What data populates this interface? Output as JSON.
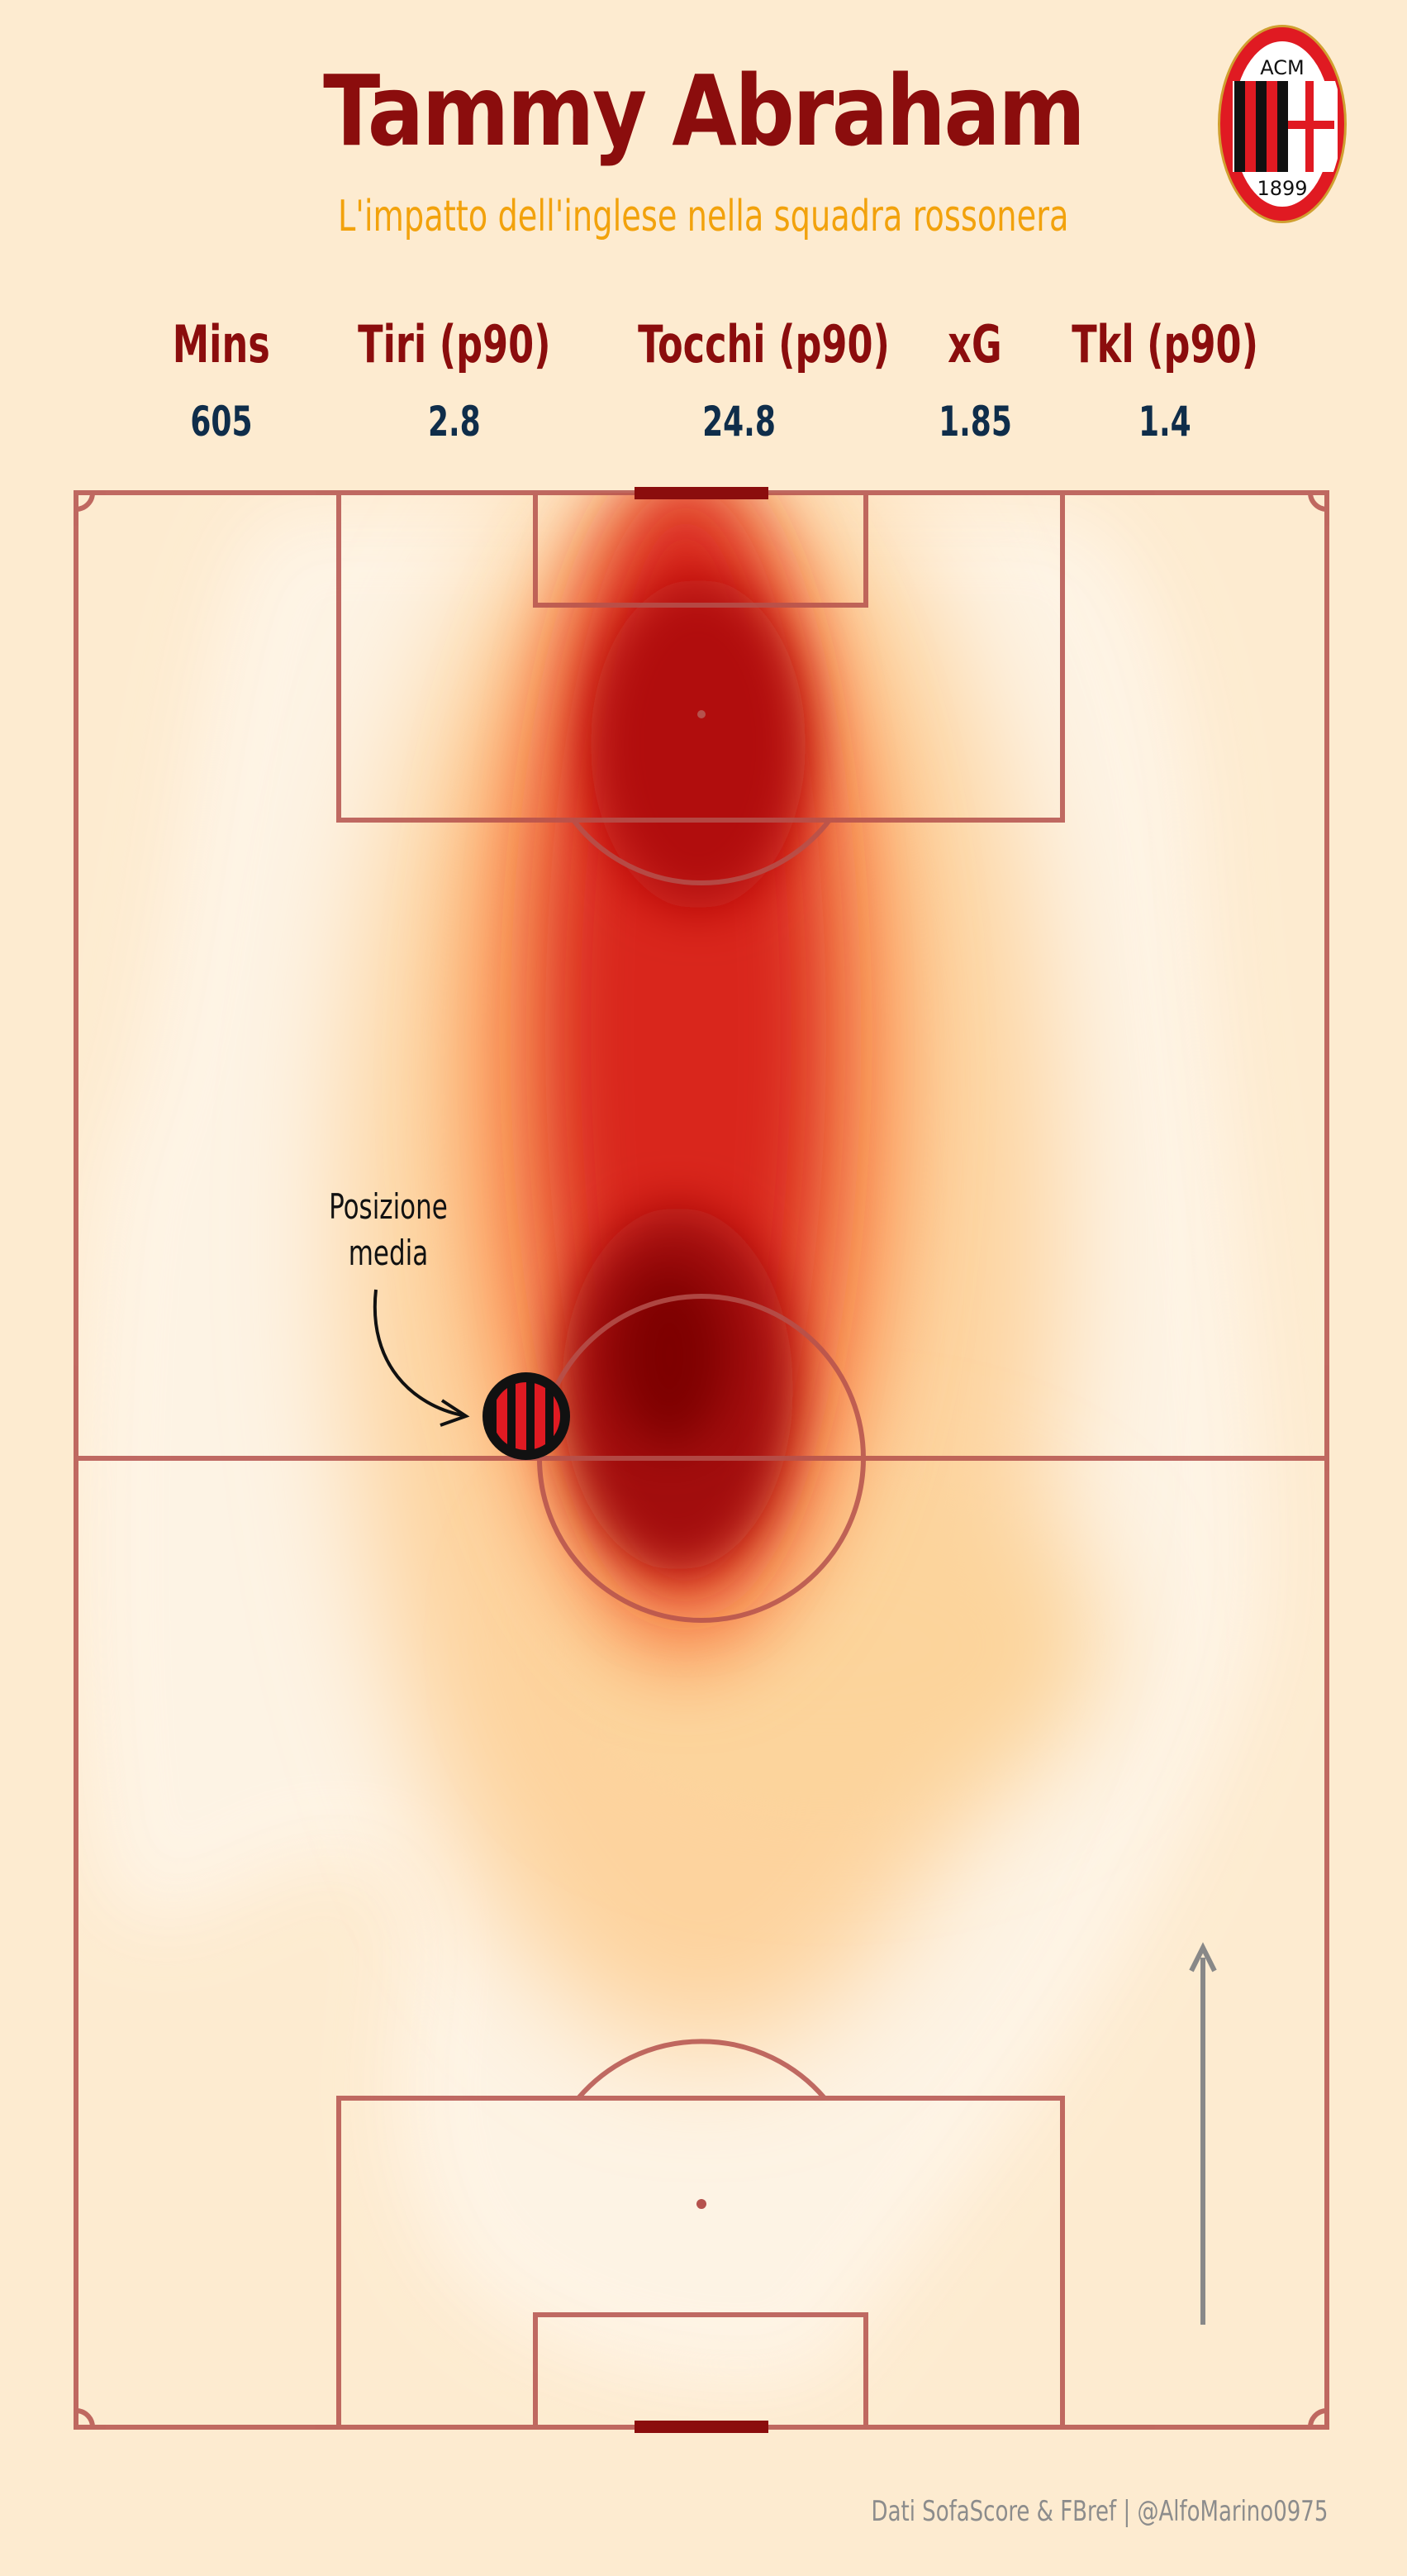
{
  "header": {
    "title": "Tammy Abraham",
    "subtitle": "L'impatto dell'inglese nella squadra rossonera"
  },
  "logo": {
    "text_top": "ACM",
    "text_bottom": "1899",
    "colors": {
      "red": "#e01a22",
      "black": "#111111",
      "gold": "#d4a52a"
    }
  },
  "stats": [
    {
      "label": "Mins",
      "value": "605"
    },
    {
      "label": "Tiri (p90)",
      "value": "2.8"
    },
    {
      "label": "Tocchi (p90)",
      "value": "24.8"
    },
    {
      "label": "xG",
      "value": "1.85"
    },
    {
      "label": "Tkl (p90)",
      "value": "1.4"
    }
  ],
  "annotation": {
    "line1": "Posizione",
    "line2": "media"
  },
  "credit": "Dati SofaScore & FBref | @AlfoMarino0975",
  "chart_data": {
    "type": "heatmap",
    "title": "Tammy Abraham",
    "subtitle": "L'impatto dell'inglese nella squadra rossonera",
    "pitch_orientation": "vertical, attacking upward",
    "colormap": [
      "#fdebd0",
      "#fdd9a6",
      "#fca45a",
      "#ef5a3a",
      "#c81b16",
      "#8b0000"
    ],
    "density_hotspots": [
      {
        "zone": "central corridor, just inside opponent half",
        "intensity": "highest"
      },
      {
        "zone": "opponent penalty box, central",
        "intensity": "high"
      },
      {
        "zone": "centre circle / own half centre",
        "intensity": "medium"
      },
      {
        "zone": "wide areas own half",
        "intensity": "low"
      }
    ],
    "average_position": {
      "label": "Posizione media",
      "x_pct_width": 36,
      "y_pct_from_own_goal": 51.5
    },
    "attack_direction_arrow": true,
    "colors": {
      "lines": "#b5524d",
      "goal": "#8b0d0d",
      "arrow": "#888888"
    }
  }
}
